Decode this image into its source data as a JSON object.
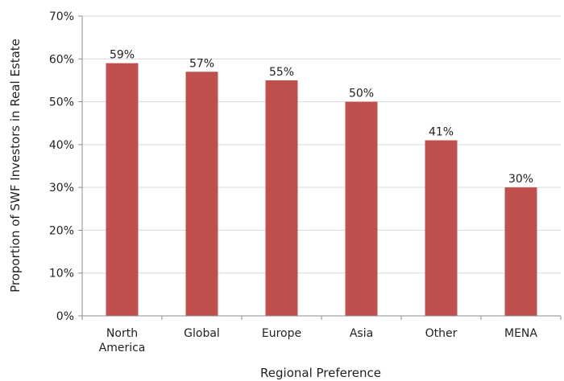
{
  "chart_data": {
    "type": "bar",
    "xlabel": "Regional Preference",
    "ylabel": "Proportion of SWF Investors in Real Estate",
    "categories": [
      "North America",
      "Global",
      "Europe",
      "Asia",
      "Other",
      "MENA"
    ],
    "category_lines": [
      [
        "North",
        "America"
      ],
      [
        "Global"
      ],
      [
        "Europe"
      ],
      [
        "Asia"
      ],
      [
        "Other"
      ],
      [
        "MENA"
      ]
    ],
    "values": [
      59,
      57,
      55,
      50,
      41,
      30
    ],
    "value_labels": [
      "59%",
      "57%",
      "55%",
      "50%",
      "41%",
      "30%"
    ],
    "ylim": [
      0,
      70
    ],
    "yticks": [
      0,
      10,
      20,
      30,
      40,
      50,
      60,
      70
    ],
    "ytick_labels": [
      "0%",
      "10%",
      "20%",
      "30%",
      "40%",
      "50%",
      "60%",
      "70%"
    ],
    "grid": true,
    "legend": "none",
    "bar_color": "#c0504d",
    "grid_color": "#d9d9d9",
    "axis_color": "#8c8c8c"
  }
}
